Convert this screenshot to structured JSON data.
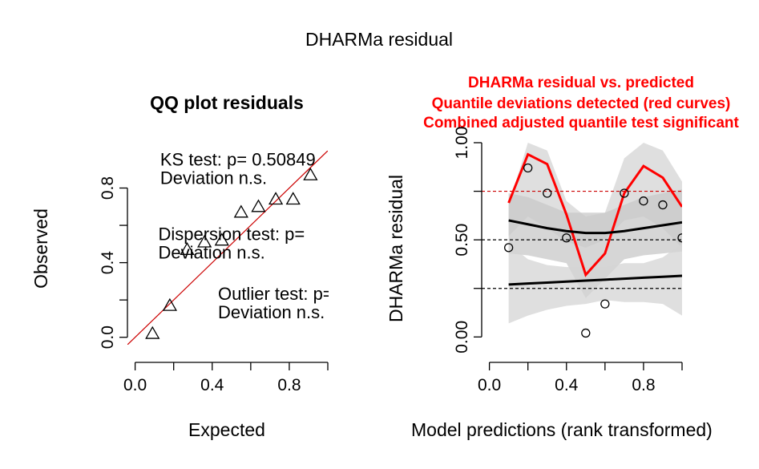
{
  "figure": {
    "title": "DHARMa residual"
  },
  "chart_data": [
    {
      "type": "scatter",
      "title": "QQ plot residuals",
      "xlabel": "Expected",
      "ylabel": "Observed",
      "xlim": [
        -0.04,
        1.0
      ],
      "ylim": [
        -0.04,
        1.0
      ],
      "x_ticks": [
        0.0,
        0.4,
        0.8
      ],
      "y_ticks": [
        0.0,
        0.4,
        0.8
      ],
      "x_tick_labels": [
        "0.0",
        "0.4",
        "0.8"
      ],
      "y_tick_labels": [
        "0.0",
        "0.4",
        "0.8"
      ],
      "marker": "triangle",
      "reference_line": {
        "slope": 1,
        "intercept": 0,
        "color": "#cc0000"
      },
      "points": [
        {
          "x": 0.09,
          "y": 0.02
        },
        {
          "x": 0.18,
          "y": 0.17
        },
        {
          "x": 0.27,
          "y": 0.47
        },
        {
          "x": 0.36,
          "y": 0.51
        },
        {
          "x": 0.45,
          "y": 0.52
        },
        {
          "x": 0.55,
          "y": 0.67
        },
        {
          "x": 0.64,
          "y": 0.7
        },
        {
          "x": 0.73,
          "y": 0.74
        },
        {
          "x": 0.82,
          "y": 0.74
        },
        {
          "x": 0.91,
          "y": 0.87
        }
      ],
      "annotations": [
        {
          "line1": "KS test: p= 0.50849",
          "line2": "Deviation  n.s.",
          "x": 0.13,
          "y": 0.92
        },
        {
          "line1": "Dispersion test: p=",
          "line2": "Deviation  n.s.",
          "x": 0.12,
          "y": 0.52
        },
        {
          "line1": "Outlier test: p=",
          "line2": "Deviation  n.s.",
          "x": 0.43,
          "y": 0.2
        }
      ],
      "grid": false,
      "legend": "none"
    },
    {
      "type": "scatter",
      "title_lines": [
        "DHARMa residual vs. predicted",
        "Quantile deviations detected (red curves)",
        "Combined adjusted quantile test significant"
      ],
      "title_color": "#ff0000",
      "xlabel": "Model predictions (rank transformed)",
      "ylabel": "DHARMa residual",
      "xlim": [
        -0.04,
        1.0
      ],
      "ylim": [
        -0.04,
        1.0
      ],
      "x_ticks": [
        0.0,
        0.4,
        0.8
      ],
      "y_ticks": [
        0.0,
        0.5,
        1.0
      ],
      "x_tick_labels": [
        "0.0",
        "0.4",
        "0.8"
      ],
      "y_tick_labels": [
        "0.00",
        "0.50",
        "1.00"
      ],
      "marker": "circle",
      "points": [
        {
          "x": 0.1,
          "y": 0.46
        },
        {
          "x": 0.2,
          "y": 0.87
        },
        {
          "x": 0.3,
          "y": 0.74
        },
        {
          "x": 0.4,
          "y": 0.51
        },
        {
          "x": 0.5,
          "y": 0.02
        },
        {
          "x": 0.6,
          "y": 0.17
        },
        {
          "x": 0.7,
          "y": 0.74
        },
        {
          "x": 0.8,
          "y": 0.7
        },
        {
          "x": 0.9,
          "y": 0.68
        },
        {
          "x": 1.0,
          "y": 0.51
        }
      ],
      "reference_lines": [
        {
          "y": 0.25,
          "color": "#000000",
          "style": "dashed"
        },
        {
          "y": 0.5,
          "color": "#000000",
          "style": "dashed"
        },
        {
          "y": 0.75,
          "color": "#cc0000",
          "style": "dashed"
        }
      ],
      "bands": [
        {
          "name": "upper-band",
          "x": [
            0.1,
            0.2,
            0.3,
            0.4,
            0.5,
            0.6,
            0.7,
            0.8,
            0.9,
            1.0
          ],
          "lower": [
            0.52,
            0.62,
            0.56,
            0.49,
            0.46,
            0.5,
            0.6,
            0.62,
            0.56,
            0.46
          ],
          "upper": [
            0.68,
            1.0,
            0.96,
            0.7,
            0.62,
            0.64,
            0.92,
            1.0,
            0.96,
            0.8
          ]
        },
        {
          "name": "median-band",
          "x": [
            0.1,
            0.2,
            0.3,
            0.4,
            0.5,
            0.6,
            0.7,
            0.8,
            0.9,
            1.0
          ],
          "lower": [
            0.43,
            0.42,
            0.4,
            0.38,
            0.2,
            0.3,
            0.4,
            0.42,
            0.43,
            0.44
          ],
          "upper": [
            0.74,
            0.72,
            0.68,
            0.64,
            0.64,
            0.64,
            0.68,
            0.72,
            0.74,
            0.76
          ]
        },
        {
          "name": "lower-band",
          "x": [
            0.1,
            0.2,
            0.3,
            0.4,
            0.5,
            0.6,
            0.7,
            0.8,
            0.9,
            1.0
          ],
          "lower": [
            0.07,
            0.11,
            0.14,
            0.16,
            0.17,
            0.19,
            0.18,
            0.18,
            0.17,
            0.11
          ],
          "upper": [
            0.48,
            0.4,
            0.37,
            0.36,
            0.36,
            0.36,
            0.38,
            0.38,
            0.41,
            0.48
          ]
        }
      ],
      "series": [
        {
          "role": "upper-quantile",
          "color": "#ff0000",
          "x": [
            0.1,
            0.2,
            0.3,
            0.4,
            0.5,
            0.6,
            0.7,
            0.8,
            0.9,
            1.0
          ],
          "y": [
            0.69,
            0.94,
            0.89,
            0.63,
            0.32,
            0.43,
            0.74,
            0.88,
            0.82,
            0.67
          ]
        },
        {
          "role": "median-quantile",
          "color": "#000000",
          "x": [
            0.1,
            0.2,
            0.3,
            0.4,
            0.5,
            0.6,
            0.7,
            0.8,
            0.9,
            1.0
          ],
          "y": [
            0.6,
            0.58,
            0.56,
            0.545,
            0.535,
            0.535,
            0.545,
            0.56,
            0.575,
            0.59
          ]
        },
        {
          "role": "lower-quantile",
          "color": "#000000",
          "x": [
            0.1,
            0.2,
            0.3,
            0.4,
            0.5,
            0.6,
            0.7,
            0.8,
            0.9,
            1.0
          ],
          "y": [
            0.27,
            0.275,
            0.28,
            0.285,
            0.29,
            0.295,
            0.3,
            0.305,
            0.31,
            0.315
          ]
        }
      ],
      "grid": false,
      "legend": "none"
    }
  ]
}
